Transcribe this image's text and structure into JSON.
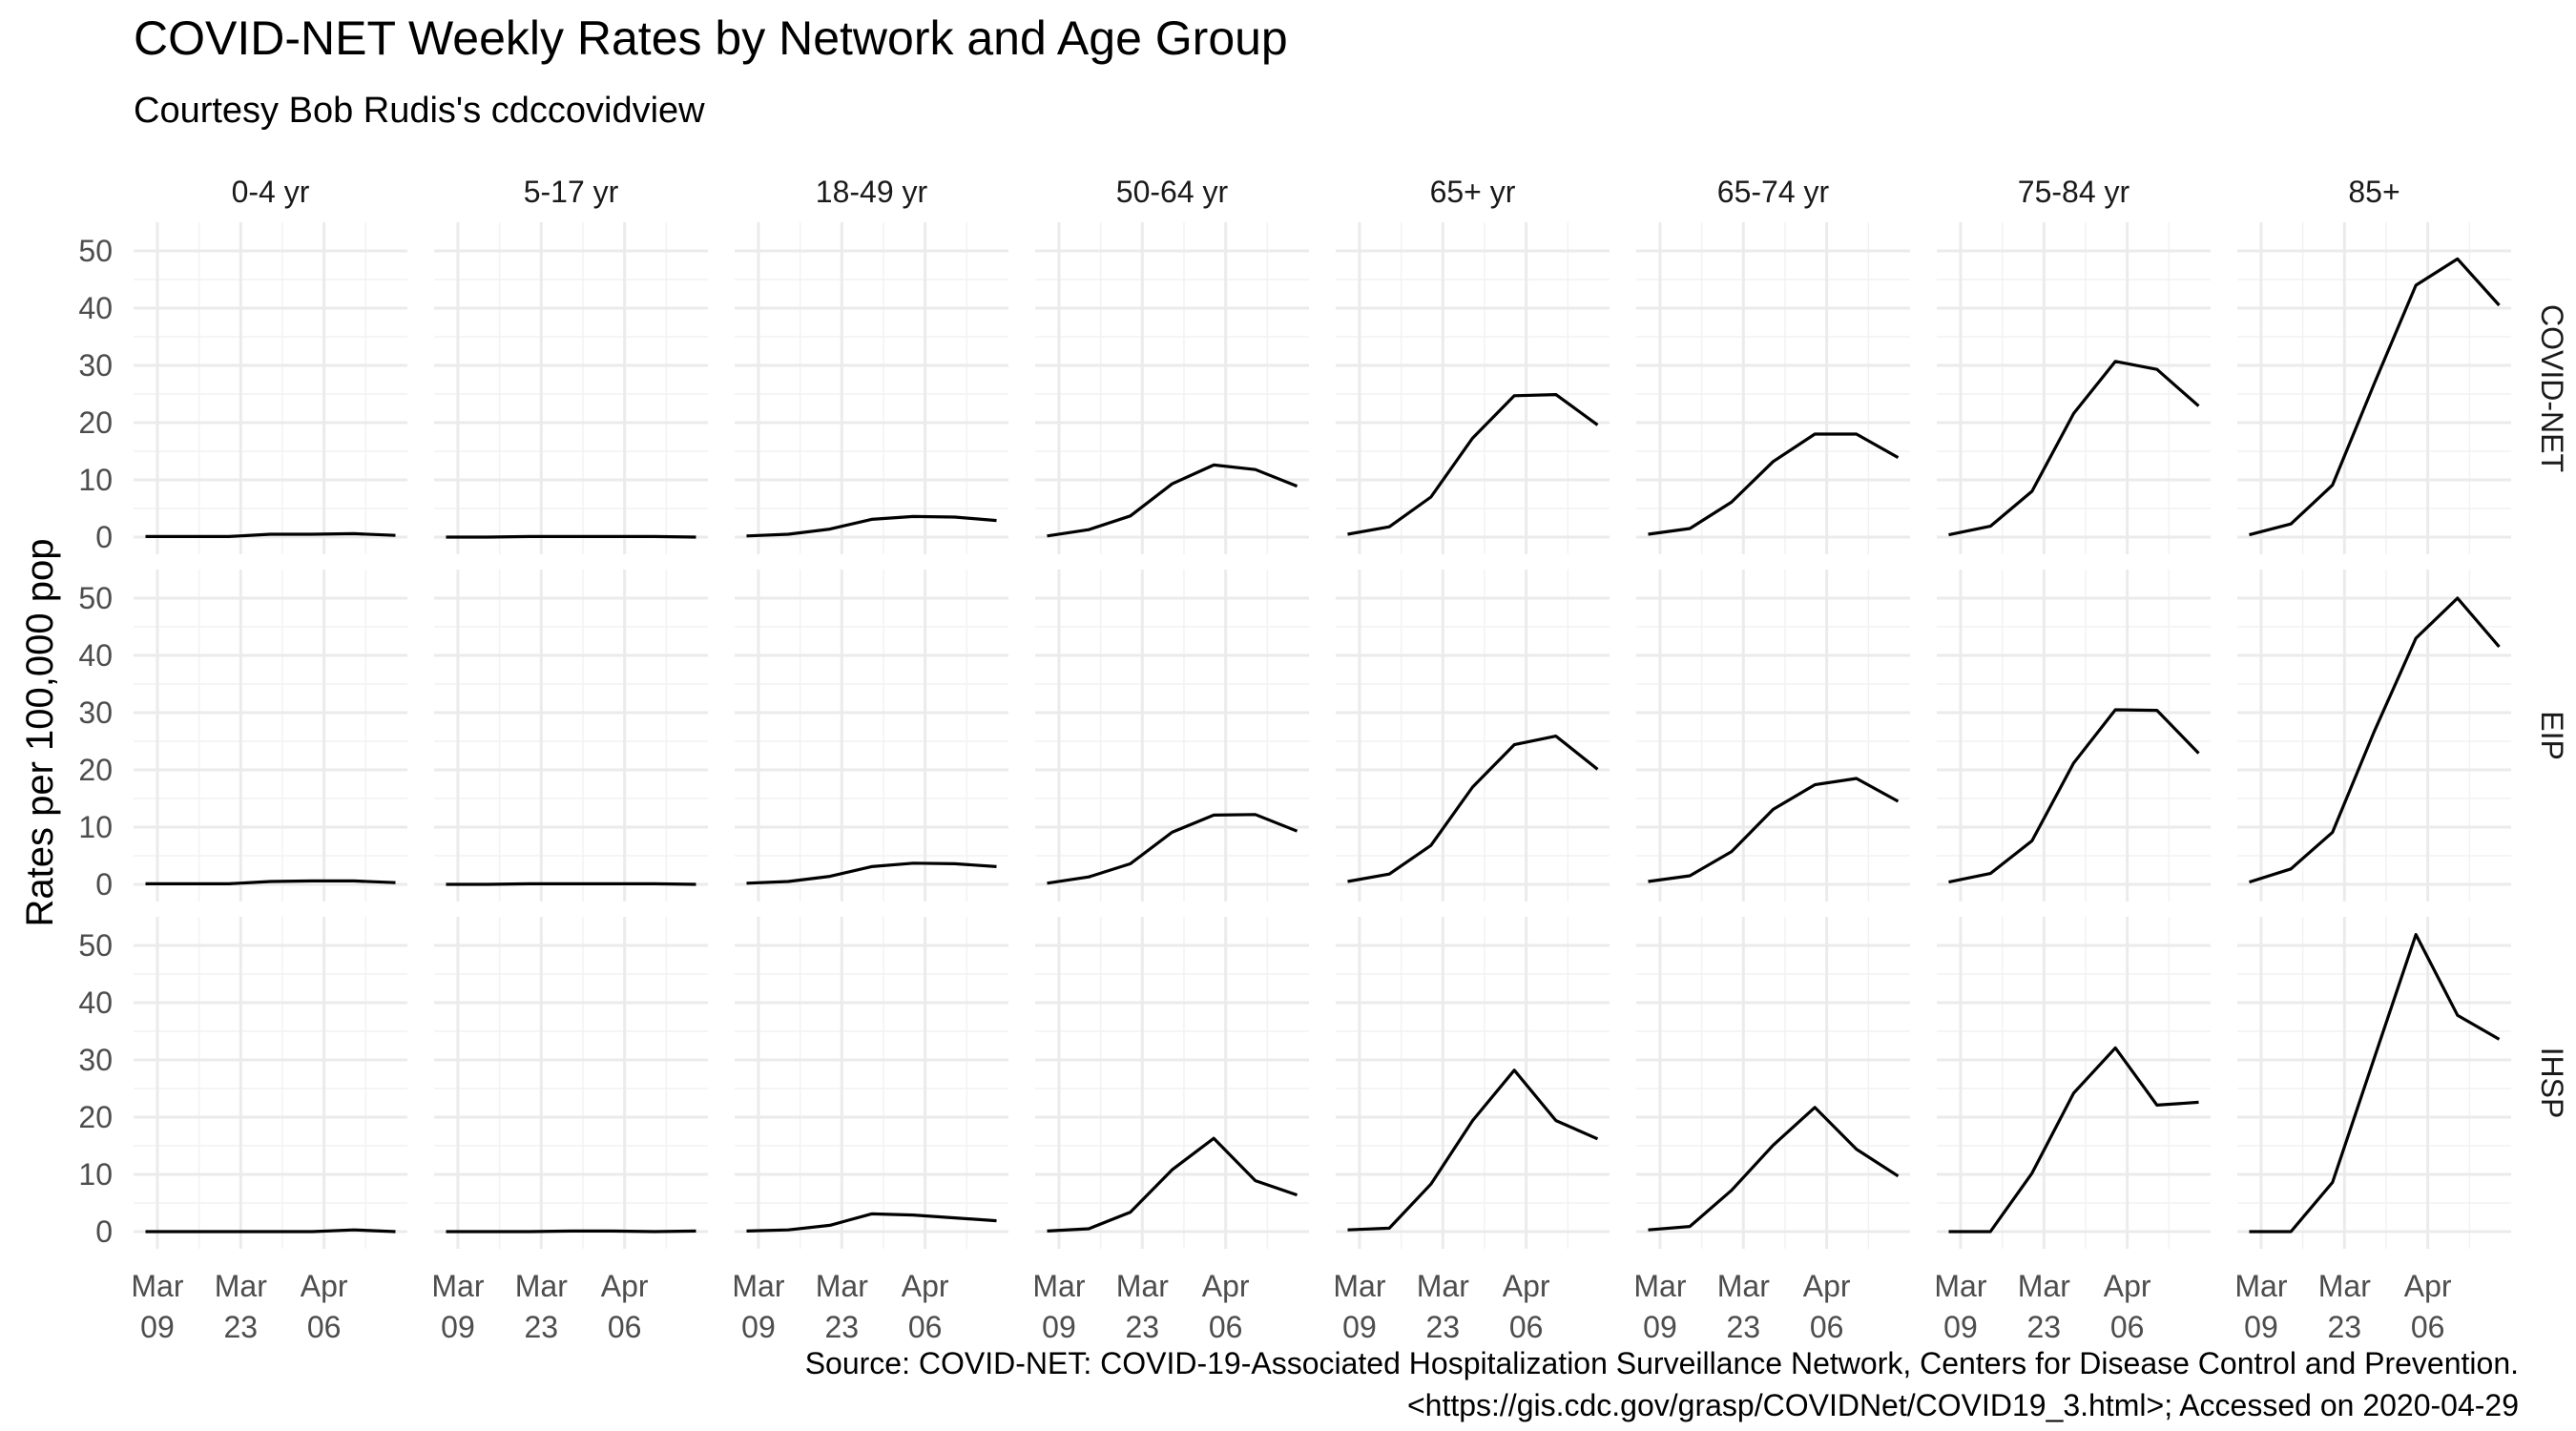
{
  "chart_data": {
    "type": "line",
    "title": "COVID-NET Weekly Rates by Network and Age Group",
    "subtitle": "Courtesy Bob Rudis's cdccovidview",
    "ylabel": "Rates per 100,000 pop",
    "caption": [
      "Source: COVID-NET: COVID-19-Associated Hospitalization Surveillance Network, Centers for Disease Control and Prevention.",
      "<https://gis.cdc.gov/grasp/COVIDNet/COVID19_3.html>; Accessed on 2020-04-29"
    ],
    "x": [
      "2020-03-07",
      "2020-03-14",
      "2020-03-21",
      "2020-03-28",
      "2020-04-04",
      "2020-04-11",
      "2020-04-18"
    ],
    "x_ticks": [
      {
        "date": "2020-03-09",
        "month": "Mar",
        "day": "09"
      },
      {
        "date": "2020-03-23",
        "month": "Mar",
        "day": "23"
      },
      {
        "date": "2020-04-06",
        "month": "Apr",
        "day": "06"
      }
    ],
    "xlim": [
      "2020-03-05",
      "2020-04-20"
    ],
    "ylim": [
      -3,
      55
    ],
    "y_ticks": [
      0,
      10,
      20,
      30,
      40,
      50
    ],
    "grid": true,
    "columns": [
      "0-4 yr",
      "5-17 yr",
      "18-49 yr",
      "50-64 yr",
      "65+ yr",
      "65-74 yr",
      "75-84 yr",
      "85+"
    ],
    "rows": [
      "COVID-NET",
      "EIP",
      "IHSP"
    ],
    "series": [
      {
        "row": "COVID-NET",
        "col": "0-4 yr",
        "values": [
          0.1,
          0.1,
          0.1,
          0.5,
          0.5,
          0.6,
          0.3
        ]
      },
      {
        "row": "COVID-NET",
        "col": "5-17 yr",
        "values": [
          0.0,
          0.0,
          0.1,
          0.1,
          0.1,
          0.1,
          0.0
        ]
      },
      {
        "row": "COVID-NET",
        "col": "18-49 yr",
        "values": [
          0.2,
          0.5,
          1.4,
          3.1,
          3.6,
          3.5,
          2.9
        ]
      },
      {
        "row": "COVID-NET",
        "col": "50-64 yr",
        "values": [
          0.2,
          1.3,
          3.7,
          9.3,
          12.6,
          11.8,
          8.9
        ]
      },
      {
        "row": "COVID-NET",
        "col": "65+ yr",
        "values": [
          0.5,
          1.8,
          7.0,
          17.3,
          24.7,
          24.9,
          19.6
        ]
      },
      {
        "row": "COVID-NET",
        "col": "65-74 yr",
        "values": [
          0.5,
          1.5,
          6.1,
          13.2,
          18.0,
          18.0,
          13.9
        ]
      },
      {
        "row": "COVID-NET",
        "col": "75-84 yr",
        "values": [
          0.4,
          1.9,
          8.0,
          21.6,
          30.7,
          29.3,
          22.9
        ]
      },
      {
        "row": "COVID-NET",
        "col": "85+",
        "values": [
          0.4,
          2.3,
          9.1,
          26.8,
          44.0,
          48.6,
          40.5
        ]
      },
      {
        "row": "EIP",
        "col": "0-4 yr",
        "values": [
          0.1,
          0.1,
          0.1,
          0.5,
          0.6,
          0.6,
          0.3
        ]
      },
      {
        "row": "EIP",
        "col": "5-17 yr",
        "values": [
          0.0,
          0.0,
          0.1,
          0.1,
          0.1,
          0.1,
          0.0
        ]
      },
      {
        "row": "EIP",
        "col": "18-49 yr",
        "values": [
          0.2,
          0.5,
          1.4,
          3.1,
          3.7,
          3.6,
          3.1
        ]
      },
      {
        "row": "EIP",
        "col": "50-64 yr",
        "values": [
          0.2,
          1.3,
          3.6,
          9.1,
          12.1,
          12.2,
          9.3
        ]
      },
      {
        "row": "EIP",
        "col": "65+ yr",
        "values": [
          0.5,
          1.8,
          6.8,
          17.0,
          24.4,
          25.9,
          20.1
        ]
      },
      {
        "row": "EIP",
        "col": "65-74 yr",
        "values": [
          0.5,
          1.5,
          5.7,
          13.1,
          17.4,
          18.5,
          14.5
        ]
      },
      {
        "row": "EIP",
        "col": "75-84 yr",
        "values": [
          0.4,
          1.9,
          7.6,
          21.2,
          30.5,
          30.4,
          22.9
        ]
      },
      {
        "row": "EIP",
        "col": "85+",
        "values": [
          0.4,
          2.7,
          9.1,
          26.7,
          43.0,
          50.0,
          41.5
        ]
      },
      {
        "row": "IHSP",
        "col": "0-4 yr",
        "values": [
          0.0,
          0.0,
          0.0,
          0.0,
          0.0,
          0.3,
          0.0
        ]
      },
      {
        "row": "IHSP",
        "col": "5-17 yr",
        "values": [
          0.0,
          0.0,
          0.0,
          0.1,
          0.1,
          0.0,
          0.1
        ]
      },
      {
        "row": "IHSP",
        "col": "18-49 yr",
        "values": [
          0.1,
          0.3,
          1.1,
          3.1,
          2.9,
          2.4,
          1.9
        ]
      },
      {
        "row": "IHSP",
        "col": "50-64 yr",
        "values": [
          0.1,
          0.5,
          3.4,
          10.8,
          16.3,
          8.9,
          6.4
        ]
      },
      {
        "row": "IHSP",
        "col": "65+ yr",
        "values": [
          0.3,
          0.6,
          8.3,
          19.4,
          28.2,
          19.4,
          16.2
        ]
      },
      {
        "row": "IHSP",
        "col": "65-74 yr",
        "values": [
          0.3,
          0.9,
          7.2,
          15.1,
          21.7,
          14.4,
          9.7
        ]
      },
      {
        "row": "IHSP",
        "col": "75-84 yr",
        "values": [
          0.0,
          0.0,
          10.2,
          24.2,
          32.1,
          22.1,
          22.6
        ]
      },
      {
        "row": "IHSP",
        "col": "85+",
        "values": [
          0.0,
          0.0,
          8.6,
          30.3,
          51.9,
          37.8,
          33.6
        ]
      }
    ],
    "colors": {
      "line": "#000000",
      "grid_major": "#ebebeb",
      "grid_minor": "#f2f2f2",
      "axis_text": "#4d4d4d",
      "strip_text": "#1a1a1a"
    }
  }
}
